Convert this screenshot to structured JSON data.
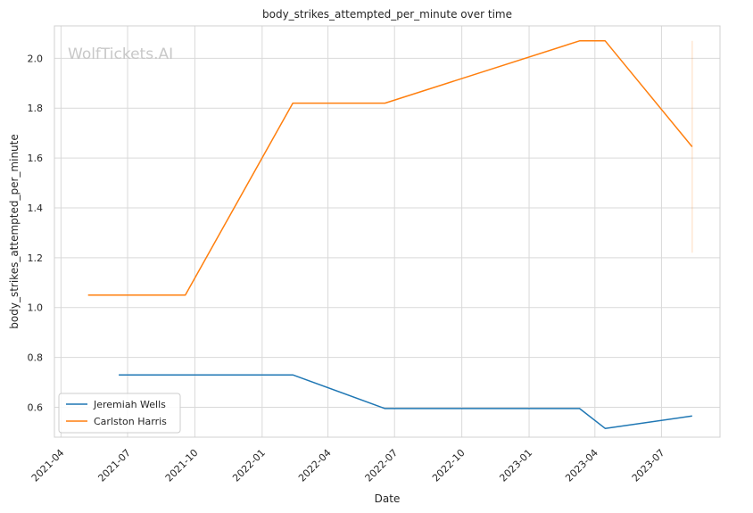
{
  "chart_data": {
    "type": "line",
    "title": "body_strikes_attempted_per_minute over time",
    "xlabel": "Date",
    "ylabel": "body_strikes_attempted_per_minute",
    "watermark": "WolfTickets.AI",
    "x_range": [
      "2021-03-23",
      "2023-09-19"
    ],
    "ylim": [
      0.48,
      2.13
    ],
    "yticks": [
      0.6,
      0.8,
      1.0,
      1.2,
      1.4,
      1.6,
      1.8,
      2.0
    ],
    "ytick_labels": [
      "0.6",
      "0.8",
      "1.0",
      "1.2",
      "1.4",
      "1.6",
      "1.8",
      "2.0"
    ],
    "xticks": [
      "2021-04-01",
      "2021-07-01",
      "2021-10-01",
      "2022-01-01",
      "2022-04-01",
      "2022-07-01",
      "2022-10-01",
      "2023-01-01",
      "2023-04-01",
      "2023-07-01"
    ],
    "xtick_labels": [
      "2021-04",
      "2021-07",
      "2021-10",
      "2022-01",
      "2022-04",
      "2022-07",
      "2022-10",
      "2023-01",
      "2023-04",
      "2023-07"
    ],
    "grid": true,
    "legend_position": "lower-left",
    "series": [
      {
        "name": "Jeremiah Wells",
        "color": "#1f77b4",
        "points": [
          {
            "x": "2021-06-19",
            "y": 0.73
          },
          {
            "x": "2022-02-12",
            "y": 0.73
          },
          {
            "x": "2022-06-18",
            "y": 0.595
          },
          {
            "x": "2023-03-11",
            "y": 0.595
          },
          {
            "x": "2023-04-15",
            "y": 0.515
          },
          {
            "x": "2023-08-12",
            "y": 0.565
          }
        ]
      },
      {
        "name": "Carlston Harris",
        "color": "#ff7f0e",
        "points": [
          {
            "x": "2021-05-08",
            "y": 1.05
          },
          {
            "x": "2021-09-18",
            "y": 1.05
          },
          {
            "x": "2022-02-12",
            "y": 1.82
          },
          {
            "x": "2022-06-18",
            "y": 1.82
          },
          {
            "x": "2023-03-11",
            "y": 2.07
          },
          {
            "x": "2023-04-15",
            "y": 2.07
          },
          {
            "x": "2023-08-12",
            "y": 1.645
          }
        ]
      }
    ],
    "error_band": {
      "series": "Carlston Harris",
      "x": "2023-08-12",
      "low": 1.22,
      "high": 2.07
    }
  }
}
